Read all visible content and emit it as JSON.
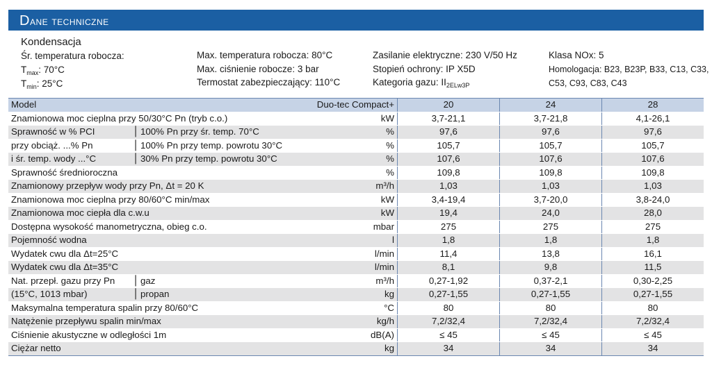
{
  "header": {
    "title_first": "D",
    "title_rest": "ane techniczne"
  },
  "intro": {
    "heading": "Kondensacja",
    "col1": {
      "avg_temp_label": "Śr. temperatura robocza:",
      "tmax_prefix": "T",
      "tmax_sub": "max",
      "tmax_value": ": 70°C",
      "tmin_prefix": "T",
      "tmin_sub": "min",
      "tmin_value": ": 25°C"
    },
    "col2": [
      "Max. temperatura robocza: 80°C",
      "Max. ciśnienie robocze: 3 bar",
      "Termostat zabezpieczający: 110°C"
    ],
    "col3": {
      "line1": "Zasilanie elektryczne: 230 V/50 Hz",
      "line2": "Stopień ochrony: IP X5D",
      "line3_prefix": "Kategoria gazu: II",
      "line3_sub": "2ELw3P"
    },
    "col4": {
      "line1": "Klasa NOx: 5",
      "line2": "Homologacja: B23, B23P, B33, C13, C33,",
      "line3": "C53, C93, C83, C43"
    }
  },
  "table": {
    "model_label": "Model",
    "series_label": "Duo-tec Compact+",
    "models": [
      "20",
      "24",
      "28"
    ],
    "rows": [
      {
        "label": "Znamionowa moc cieplna przy 50/30°C Pn (tryb c.o.)",
        "unit": "kW",
        "values": [
          "3,7-21,1",
          "3,7-21,8",
          "4,1-26,1"
        ]
      },
      {
        "label_a": "Sprawność w % PCI",
        "label_b": "100% Pn przy śr. temp. 70°C",
        "unit": "%",
        "values": [
          "97,6",
          "97,6",
          "97,6"
        ]
      },
      {
        "label_a": "przy obciąż. ...% Pn",
        "label_b": "100% Pn przy temp. powrotu 30°C",
        "unit": "%",
        "values": [
          "105,7",
          "105,7",
          "105,7"
        ]
      },
      {
        "label_a": "i śr. temp. wody ...°C",
        "label_b": "30% Pn przy temp. powrotu 30°C",
        "unit": "%",
        "values": [
          "107,6",
          "107,6",
          "107,6"
        ]
      },
      {
        "label": "Sprawność średnioroczna",
        "unit": "%",
        "values": [
          "109,8",
          "109,8",
          "109,8"
        ]
      },
      {
        "label": "Znamionowy przepływ wody przy Pn, Δt = 20 K",
        "unit": "m³/h",
        "values": [
          "1,03",
          "1,03",
          "1,03"
        ]
      },
      {
        "label": "Znamionowa moc cieplna przy 80/60°C min/max",
        "unit": "kW",
        "values": [
          "3,4-19,4",
          "3,7-20,0",
          "3,8-24,0"
        ]
      },
      {
        "label": "Znamionowa moc ciepła dla c.w.u",
        "unit": "kW",
        "values": [
          "19,4",
          "24,0",
          "28,0"
        ]
      },
      {
        "label": "Dostępna wysokość manometryczna, obieg c.o.",
        "unit": "mbar",
        "values": [
          "275",
          "275",
          "275"
        ]
      },
      {
        "label": "Pojemność wodna",
        "unit": "l",
        "values": [
          "1,8",
          "1,8",
          "1,8"
        ]
      },
      {
        "label": "Wydatek cwu dla Δt=25°C",
        "unit": "l/min",
        "values": [
          "11,4",
          "13,8",
          "16,1"
        ]
      },
      {
        "label": "Wydatek cwu dla Δt=35°C",
        "unit": "l/min",
        "values": [
          "8,1",
          "9,8",
          "11,5"
        ]
      },
      {
        "label_a": "Nat. przepł. gazu przy Pn",
        "label_b": "gaz",
        "unit": "m³/h",
        "values": [
          "0,27-1,92",
          "0,37-2,1",
          "0,30-2,25"
        ]
      },
      {
        "label_a": "(15°C, 1013 mbar)",
        "label_b": "propan",
        "unit": "kg",
        "values": [
          "0,27-1,55",
          "0,27-1,55",
          "0,27-1,55"
        ]
      },
      {
        "label": "Maksymalna temperatura spalin przy 80/60°C",
        "unit": "°C",
        "values": [
          "80",
          "80",
          "80"
        ]
      },
      {
        "label": "Natężenie przepływu spalin min/max",
        "unit": "kg/h",
        "values": [
          "7,2/32,4",
          "7,2/32,4",
          "7,2/32,4"
        ]
      },
      {
        "label": "Ciśnienie akustyczne w odległości 1m",
        "unit": "dB(A)",
        "values": [
          "≤ 45",
          "≤ 45",
          "≤ 45"
        ]
      },
      {
        "label": "Ciężar netto",
        "unit": "kg",
        "values": [
          "34",
          "34",
          "34"
        ]
      }
    ]
  }
}
